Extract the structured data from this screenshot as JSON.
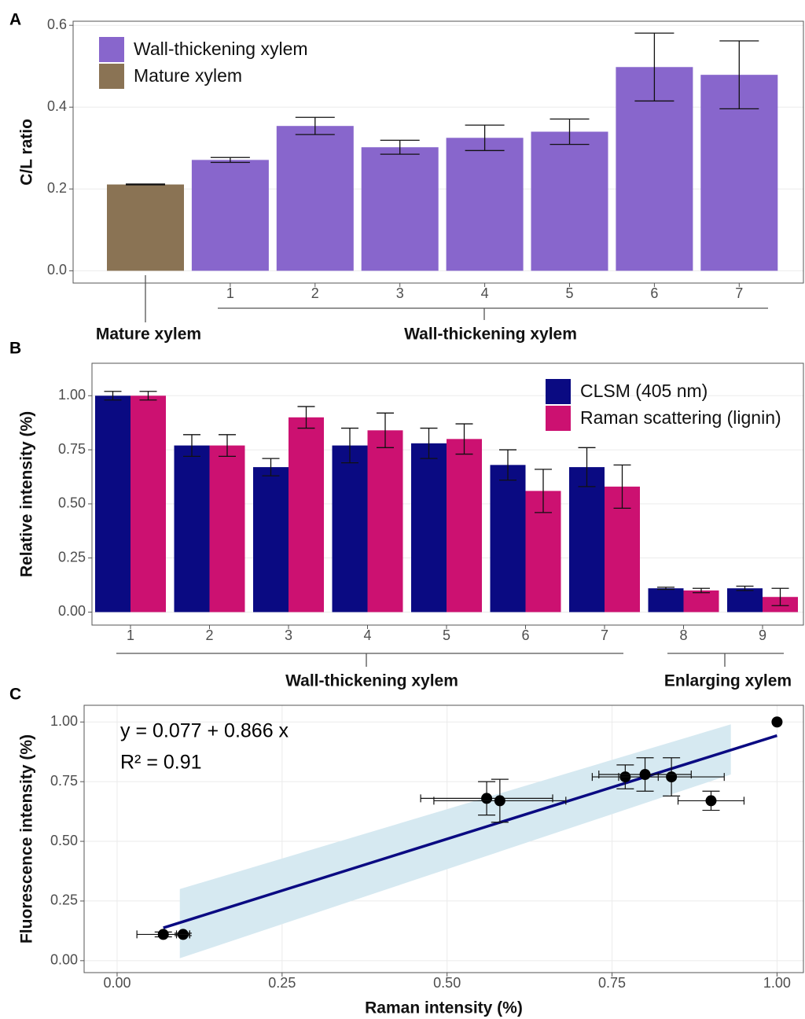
{
  "chart_data": [
    {
      "type": "bar",
      "panel": "A",
      "ylabel": "C/L ratio",
      "categories": [
        null,
        "1",
        "2",
        "3",
        "4",
        "5",
        "6",
        "7"
      ],
      "series": [
        {
          "name": "Wall-thickening xylem",
          "color": "#8866cc",
          "values": [
            null,
            0.271,
            0.354,
            0.302,
            0.325,
            0.34,
            0.498,
            0.479
          ],
          "errors": [
            null,
            0.006,
            0.021,
            0.017,
            0.031,
            0.031,
            0.083,
            0.083
          ]
        },
        {
          "name": "Mature xylem",
          "color": "#8a7354",
          "values": [
            0.211,
            null,
            null,
            null,
            null,
            null,
            null,
            null
          ],
          "errors": [
            0.001,
            null,
            null,
            null,
            null,
            null,
            null,
            null
          ]
        }
      ],
      "ylim": [
        -0.03,
        0.61
      ],
      "yticks": [
        {
          "value": 0,
          "label": "0.0"
        },
        0.2,
        0.4,
        0.6
      ],
      "grid": true,
      "legend": "top-left",
      "groups": [
        "Mature xylem",
        "Wall-thickening xylem"
      ]
    },
    {
      "type": "bar",
      "panel": "B",
      "ylabel": "Relative intensity (%)",
      "categories": [
        "1",
        "2",
        "3",
        "4",
        "5",
        "6",
        "7",
        "8",
        "9"
      ],
      "series": [
        {
          "name": "CLSM (405 nm)",
          "color": "#0a0a82",
          "values": [
            1.0,
            0.77,
            0.67,
            0.77,
            0.78,
            0.68,
            0.67,
            0.11,
            0.11
          ],
          "errors": [
            0.02,
            0.05,
            0.04,
            0.08,
            0.07,
            0.07,
            0.09,
            0.005,
            0.01
          ]
        },
        {
          "name": "Raman scattering (lignin)",
          "color": "#cc1171",
          "values": [
            1.0,
            0.77,
            0.9,
            0.84,
            0.8,
            0.56,
            0.58,
            0.1,
            0.07
          ],
          "errors": [
            0.02,
            0.05,
            0.05,
            0.08,
            0.07,
            0.1,
            0.1,
            0.01,
            0.04
          ]
        }
      ],
      "ylim": [
        -0.06,
        1.15
      ],
      "yticks": [
        {
          "value": 0,
          "label": "0.00"
        },
        0.25,
        {
          "value": 0.5,
          "label": "0.50"
        },
        0.75,
        {
          "value": 1,
          "label": "1.00"
        }
      ],
      "grid": true,
      "legend": "top-right",
      "groups": [
        "Wall-thickening xylem",
        "Enlarging xylem"
      ]
    },
    {
      "type": "scatter",
      "panel": "C",
      "xlabel": "Raman intensity (%)",
      "ylabel": "Fluorescence intensity (%)",
      "series": [
        {
          "color": "#000000",
          "x": [
            1.0,
            0.77,
            0.9,
            0.84,
            0.8,
            0.56,
            0.58,
            0.1,
            0.07
          ],
          "values": [
            1.0,
            0.77,
            0.67,
            0.77,
            0.78,
            0.68,
            0.67,
            0.11,
            0.11
          ],
          "x_errors": [
            null,
            0.05,
            0.05,
            0.08,
            0.07,
            0.1,
            0.1,
            0.01,
            0.04
          ],
          "errors": [
            null,
            0.05,
            0.04,
            0.08,
            0.07,
            0.07,
            0.09,
            0.005,
            0.01
          ]
        }
      ],
      "fit": {
        "intercept": 0.077,
        "slope": 0.866,
        "x_range": [
          0.07,
          1.0
        ],
        "color": "#0a0a82"
      },
      "band": {
        "x": [
          0.095,
          0.93
        ],
        "lower": [
          0.01,
          0.78
        ],
        "upper": [
          0.3,
          0.99
        ],
        "color": "#d6e9f1"
      },
      "annotations": [
        "y = 0.077 + 0.866 x",
        "R² = 0.91"
      ],
      "xlim": [
        -0.05,
        1.04
      ],
      "xticks": [
        {
          "value": 0,
          "label": "0.00"
        },
        0.25,
        {
          "value": 0.5,
          "label": "0.50"
        },
        0.75,
        {
          "value": 1,
          "label": "1.00"
        }
      ],
      "ylim": [
        -0.05,
        1.07
      ],
      "yticks": [
        {
          "value": 0,
          "label": "0.00"
        },
        0.25,
        {
          "value": 0.5,
          "label": "0.50"
        },
        0.75,
        {
          "value": 1,
          "label": "1.00"
        }
      ],
      "grid": true
    }
  ]
}
